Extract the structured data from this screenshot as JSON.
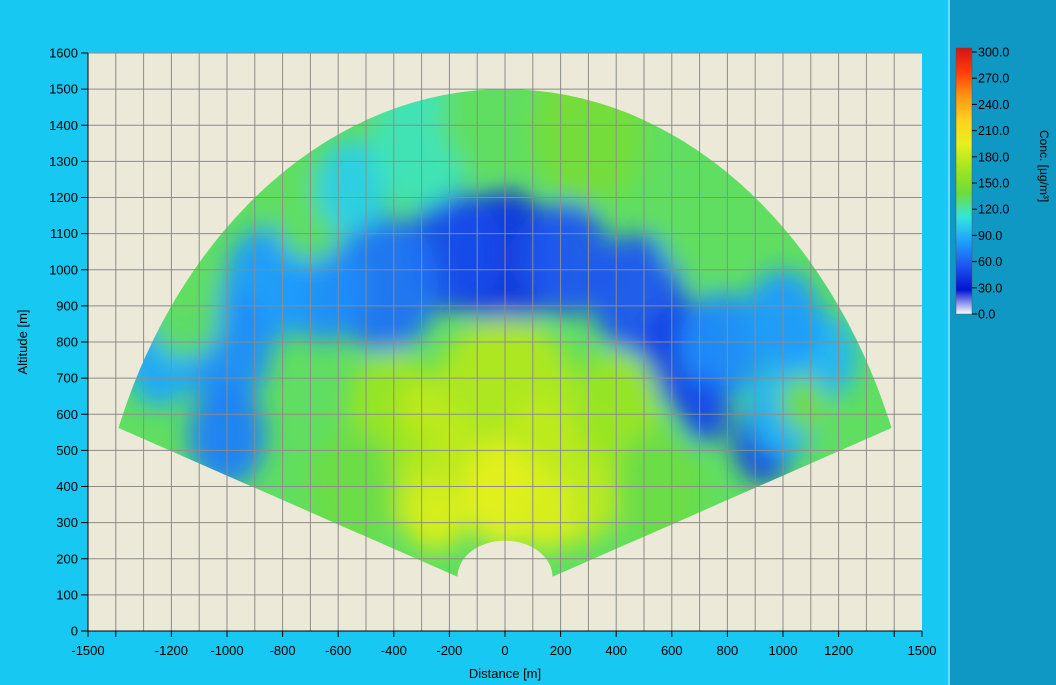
{
  "chart_data": {
    "type": "heatmap",
    "title": "",
    "xlabel": "Distance [m]",
    "ylabel": "Altitude [m]",
    "xlim": [
      -1500,
      1500
    ],
    "ylim": [
      0,
      1600
    ],
    "x_ticks": [
      -1500,
      -1200,
      -1000,
      -800,
      -600,
      -400,
      -200,
      0,
      200,
      400,
      600,
      800,
      1000,
      1200,
      1500
    ],
    "x_tick_labels": [
      "-1500",
      "-1200",
      "-1000",
      "-800",
      "-600",
      "-400",
      "-200",
      "0",
      "200",
      "400",
      "600",
      "800",
      "1000",
      "1200",
      "1500"
    ],
    "y_ticks": [
      0,
      100,
      200,
      300,
      400,
      500,
      600,
      700,
      800,
      900,
      1000,
      1100,
      1200,
      1300,
      1400,
      1500,
      1600
    ],
    "y_tick_labels": [
      "0",
      "100",
      "200",
      "300",
      "400",
      "500",
      "600",
      "700",
      "800",
      "900",
      "1000",
      "1100",
      "1200",
      "1300",
      "1400",
      "1500",
      "1600"
    ],
    "grid": true,
    "scan_sector": {
      "origin": [
        0,
        0
      ],
      "max_range_m": 1500,
      "min_elevation_deg": 22,
      "max_elevation_deg": 158
    },
    "colorbar": {
      "label": "Conc. [µg/m³]",
      "min": 0,
      "max": 300,
      "ticks": [
        300,
        270,
        240,
        210,
        180,
        150,
        120,
        90,
        60,
        30,
        0
      ],
      "tick_labels": [
        "300.0",
        "270.0",
        "240.0",
        "210.0",
        "180.0",
        "150.0",
        "120.0",
        "90.0",
        "60.0",
        "30.0",
        "0.0"
      ],
      "colors": [
        "#ffffff",
        "#0014d2",
        "#1e55f0",
        "#1ea0ff",
        "#32e6dc",
        "#6edc3c",
        "#a0e61e",
        "#e6f01e",
        "#ffd21e",
        "#ff9614",
        "#ff3c0a",
        "#d21414"
      ]
    },
    "regions": [
      {
        "x": 0,
        "y": 1030,
        "r": 190,
        "value": 40
      },
      {
        "x": -180,
        "y": 1050,
        "r": 170,
        "value": 50
      },
      {
        "x": 220,
        "y": 1030,
        "r": 160,
        "value": 55
      },
      {
        "x": -430,
        "y": 960,
        "r": 190,
        "value": 65
      },
      {
        "x": 480,
        "y": 930,
        "r": 170,
        "value": 55
      },
      {
        "x": -650,
        "y": 950,
        "r": 150,
        "value": 75
      },
      {
        "x": 650,
        "y": 760,
        "r": 150,
        "value": 45
      },
      {
        "x": 780,
        "y": 790,
        "r": 150,
        "value": 75
      },
      {
        "x": 720,
        "y": 610,
        "r": 90,
        "value": 50
      },
      {
        "x": 930,
        "y": 520,
        "r": 110,
        "value": 45
      },
      {
        "x": -850,
        "y": 960,
        "r": 160,
        "value": 80
      },
      {
        "x": -1000,
        "y": 780,
        "r": 160,
        "value": 75
      },
      {
        "x": -1000,
        "y": 540,
        "r": 140,
        "value": 70
      },
      {
        "x": -1240,
        "y": 750,
        "r": 130,
        "value": 85
      },
      {
        "x": -1150,
        "y": 880,
        "r": 130,
        "value": 130
      },
      {
        "x": 1150,
        "y": 760,
        "r": 120,
        "value": 90
      },
      {
        "x": 1000,
        "y": 860,
        "r": 140,
        "value": 80
      },
      {
        "x": 1000,
        "y": 610,
        "r": 130,
        "value": 90
      },
      {
        "x": 1070,
        "y": 630,
        "r": 80,
        "value": 140
      },
      {
        "x": -700,
        "y": 1150,
        "r": 130,
        "value": 130
      },
      {
        "x": -550,
        "y": 1230,
        "r": 130,
        "value": 100
      },
      {
        "x": 700,
        "y": 1120,
        "r": 150,
        "value": 130
      },
      {
        "x": -300,
        "y": 1350,
        "r": 180,
        "value": 115
      },
      {
        "x": 300,
        "y": 1380,
        "r": 200,
        "value": 140
      },
      {
        "x": -90,
        "y": 1420,
        "r": 140,
        "value": 130
      },
      {
        "x": 0,
        "y": 600,
        "r": 270,
        "value": 170
      },
      {
        "x": -250,
        "y": 430,
        "r": 190,
        "value": 175
      },
      {
        "x": 250,
        "y": 430,
        "r": 190,
        "value": 175
      },
      {
        "x": 0,
        "y": 380,
        "r": 150,
        "value": 190
      },
      {
        "x": -250,
        "y": 320,
        "r": 100,
        "value": 185
      },
      {
        "x": 150,
        "y": 330,
        "r": 110,
        "value": 185
      },
      {
        "x": 400,
        "y": 620,
        "r": 160,
        "value": 160
      },
      {
        "x": -400,
        "y": 620,
        "r": 160,
        "value": 160
      },
      {
        "x": -550,
        "y": 400,
        "r": 160,
        "value": 135
      },
      {
        "x": 550,
        "y": 400,
        "r": 160,
        "value": 135
      },
      {
        "x": -300,
        "y": 620,
        "r": 80,
        "value": 175
      },
      {
        "x": 100,
        "y": 560,
        "r": 90,
        "value": 175
      }
    ],
    "background_value": 130
  }
}
